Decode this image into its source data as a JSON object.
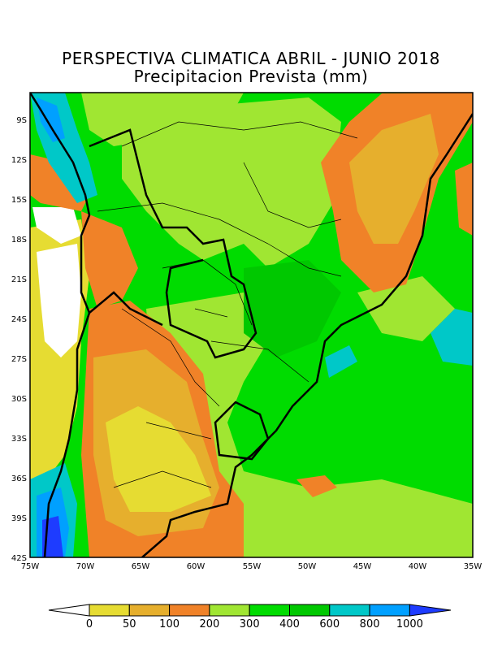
{
  "title": "PERSPECTIVA CLIMATICA ABRIL - JUNIO 2018",
  "subtitle": "Precipitacion Prevista (mm)",
  "map": {
    "lat_ticks": [
      "9S",
      "12S",
      "15S",
      "18S",
      "21S",
      "24S",
      "27S",
      "30S",
      "33S",
      "36S",
      "39S",
      "42S"
    ],
    "lon_ticks": [
      "75W",
      "70W",
      "65W",
      "60W",
      "55W",
      "50W",
      "45W",
      "40W",
      "35W"
    ],
    "lon_range": [
      -75,
      -35
    ],
    "lat_range": [
      -7,
      -42
    ]
  },
  "legend": {
    "labels": [
      "0",
      "50",
      "100",
      "200",
      "300",
      "400",
      "600",
      "800",
      "1000"
    ],
    "colors": [
      "#ffffff",
      "#e6dc32",
      "#e6af2d",
      "#f08228",
      "#a0e632",
      "#00dc00",
      "#00c800",
      "#00c8c8",
      "#00a0ff",
      "#1e3cff"
    ]
  }
}
